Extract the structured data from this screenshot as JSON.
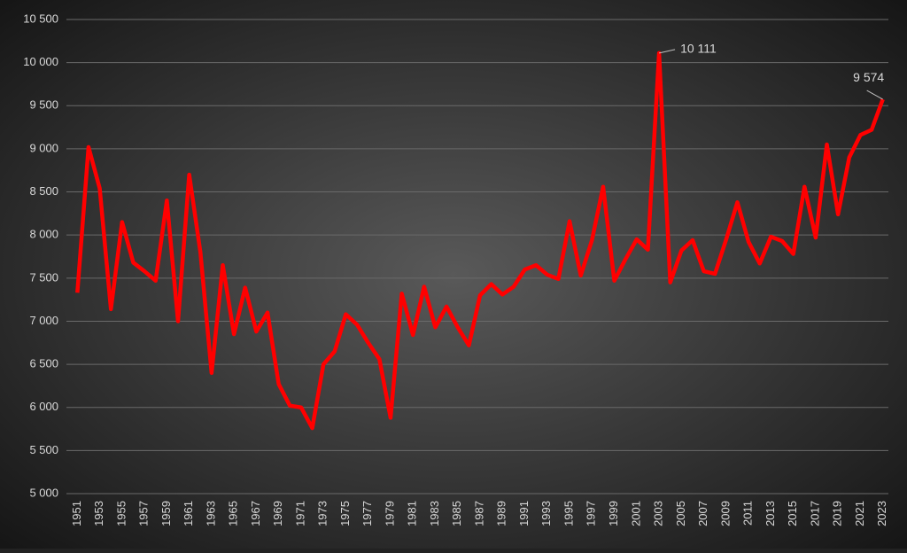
{
  "chart_data": {
    "type": "line",
    "categories": [
      "1951",
      null,
      "1953",
      null,
      "1955",
      null,
      "1957",
      null,
      "1959",
      null,
      "1961",
      null,
      "1963",
      null,
      "1965",
      null,
      "1967",
      null,
      "1969",
      null,
      "1971",
      null,
      "1973",
      null,
      "1975",
      null,
      "1977",
      null,
      "1979",
      null,
      "1981",
      null,
      "1983",
      null,
      "1985",
      null,
      "1987",
      null,
      "1989",
      null,
      "1991",
      null,
      "1993",
      null,
      "1995",
      null,
      "1997",
      null,
      "1999",
      null,
      "2001",
      null,
      "2003",
      null,
      "2005",
      null,
      "2007",
      null,
      "2009",
      null,
      "2011",
      null,
      "2013",
      null,
      "2015",
      null,
      "2017",
      null,
      "2019",
      null,
      "2021",
      null,
      "2023"
    ],
    "values": [
      7330,
      9020,
      8540,
      7140,
      8150,
      7680,
      7580,
      7470,
      8400,
      7000,
      8700,
      7800,
      6400,
      7650,
      6850,
      7390,
      6880,
      7100,
      6270,
      6020,
      6000,
      5760,
      6500,
      6650,
      7080,
      6960,
      6750,
      6560,
      5880,
      7320,
      6840,
      7400,
      6930,
      7170,
      6930,
      6720,
      7300,
      7430,
      7310,
      7400,
      7600,
      7650,
      7540,
      7490,
      8160,
      7530,
      7940,
      8560,
      7470,
      7720,
      7950,
      7830,
      10111,
      7450,
      7820,
      7940,
      7580,
      7550,
      7950,
      8380,
      7920,
      7670,
      7980,
      7930,
      7780,
      8560,
      7970,
      9050,
      8240,
      8900,
      9160,
      9220,
      9574
    ],
    "value_labels": [
      null,
      null,
      null,
      null,
      null,
      null,
      null,
      null,
      null,
      null,
      null,
      null,
      null,
      null,
      null,
      null,
      null,
      null,
      null,
      null,
      null,
      null,
      null,
      null,
      null,
      null,
      null,
      null,
      null,
      null,
      null,
      null,
      null,
      null,
      null,
      null,
      null,
      null,
      null,
      null,
      null,
      null,
      null,
      null,
      null,
      null,
      null,
      null,
      null,
      null,
      null,
      null,
      "10 111",
      null,
      null,
      null,
      null,
      null,
      null,
      null,
      null,
      null,
      null,
      null,
      null,
      null,
      null,
      null,
      null,
      null,
      null,
      null,
      "9 574"
    ],
    "color": "#ff0000",
    "ylim": [
      5000,
      10500
    ],
    "yticks": [
      {
        "value": 5000,
        "label": "5 000"
      },
      {
        "value": 5500,
        "label": "5 500"
      },
      {
        "value": 6000,
        "label": "6 000"
      },
      {
        "value": 6500,
        "label": "6 500"
      },
      {
        "value": 7000,
        "label": "7 000"
      },
      {
        "value": 7500,
        "label": "7 500"
      },
      {
        "value": 8000,
        "label": "8 000"
      },
      {
        "value": 8500,
        "label": "8 500"
      },
      {
        "value": 9000,
        "label": "9 000"
      },
      {
        "value": 9500,
        "label": "9 500"
      },
      {
        "value": 10000,
        "label": "10 000"
      },
      {
        "value": 10500,
        "label": "10 500"
      }
    ],
    "grid": true
  }
}
